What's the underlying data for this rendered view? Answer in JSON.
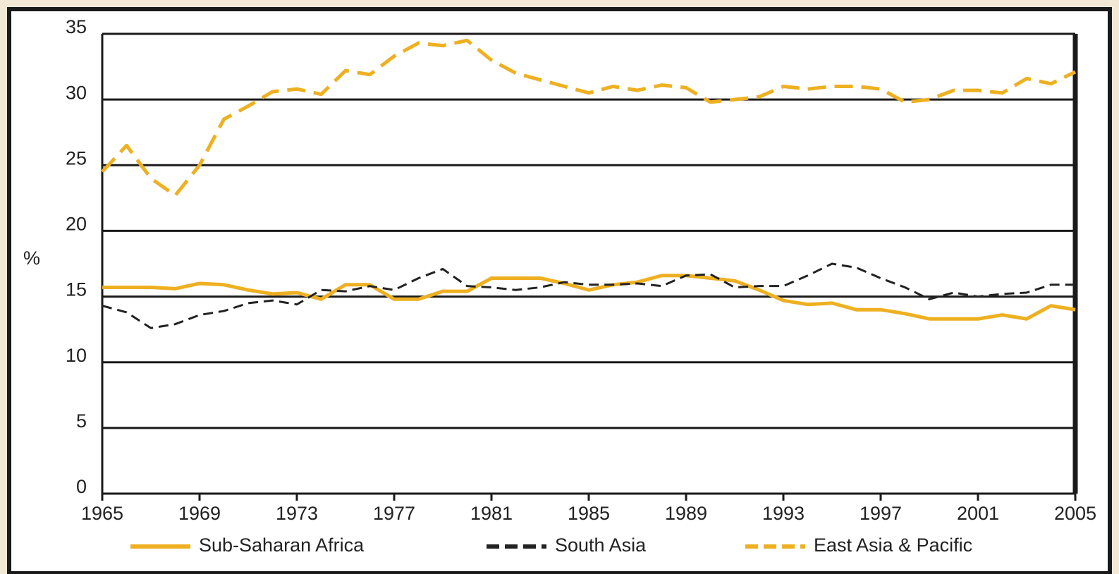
{
  "chart_data": {
    "type": "line",
    "ylabel": "%",
    "x": [
      1965,
      1966,
      1967,
      1968,
      1969,
      1970,
      1971,
      1972,
      1973,
      1974,
      1975,
      1976,
      1977,
      1978,
      1979,
      1980,
      1981,
      1982,
      1983,
      1984,
      1985,
      1986,
      1987,
      1988,
      1989,
      1990,
      1991,
      1992,
      1993,
      1994,
      1995,
      1996,
      1997,
      1998,
      1999,
      2000,
      2001,
      2002,
      2003,
      2004,
      2005
    ],
    "series": [
      {
        "name": "Sub-Saharan Africa",
        "color": "#eeb021",
        "style": "solid",
        "values": [
          15.7,
          15.7,
          15.7,
          15.6,
          16,
          15.9,
          15.5,
          15.2,
          15.3,
          14.8,
          15.9,
          15.9,
          14.8,
          14.8,
          15.4,
          15.4,
          16.4,
          16.4,
          16.4,
          16,
          15.5,
          15.9,
          16.1,
          16.6,
          16.6,
          16.4,
          16.2,
          15.5,
          14.7,
          14.4,
          14.5,
          14,
          14,
          13.7,
          13.3,
          13.3,
          13.3,
          13.6,
          13.3,
          14.3,
          14
        ]
      },
      {
        "name": "South Asia",
        "color": "#222222",
        "style": "dashed",
        "values": [
          14.3,
          13.8,
          12.6,
          12.9,
          13.6,
          13.9,
          14.5,
          14.7,
          14.4,
          15.5,
          15.4,
          15.8,
          15.5,
          16.4,
          17.1,
          15.8,
          15.7,
          15.5,
          15.7,
          16.1,
          15.9,
          15.9,
          16,
          15.8,
          16.6,
          16.7,
          15.7,
          15.8,
          15.8,
          16.6,
          17.5,
          17.2,
          16.4,
          15.7,
          14.8,
          15.3,
          15,
          15.2,
          15.3,
          15.9,
          15.9
        ]
      },
      {
        "name": "East Asia & Pacific",
        "color": "#eeb021",
        "style": "dashed",
        "values": [
          24.5,
          26.5,
          24,
          22.7,
          25,
          28.5,
          29.5,
          30.6,
          30.8,
          30.4,
          32.2,
          31.9,
          33.3,
          34.3,
          34.1,
          34.5,
          33,
          32,
          31.5,
          31,
          30.5,
          31,
          30.7,
          31.1,
          30.9,
          29.8,
          30,
          30.2,
          31,
          30.8,
          31,
          31,
          30.8,
          29.8,
          30,
          30.7,
          30.7,
          30.5,
          31.6,
          31.2,
          32.1
        ]
      }
    ],
    "xlim": [
      1965,
      2005
    ],
    "xticks": [
      1965,
      1969,
      1973,
      1977,
      1981,
      1985,
      1989,
      1993,
      1997,
      2001,
      2005
    ],
    "ylim": [
      0,
      35
    ],
    "yticks": [
      0,
      5,
      10,
      15,
      20,
      25,
      30,
      35
    ],
    "grid": true,
    "legend": "bottom"
  }
}
